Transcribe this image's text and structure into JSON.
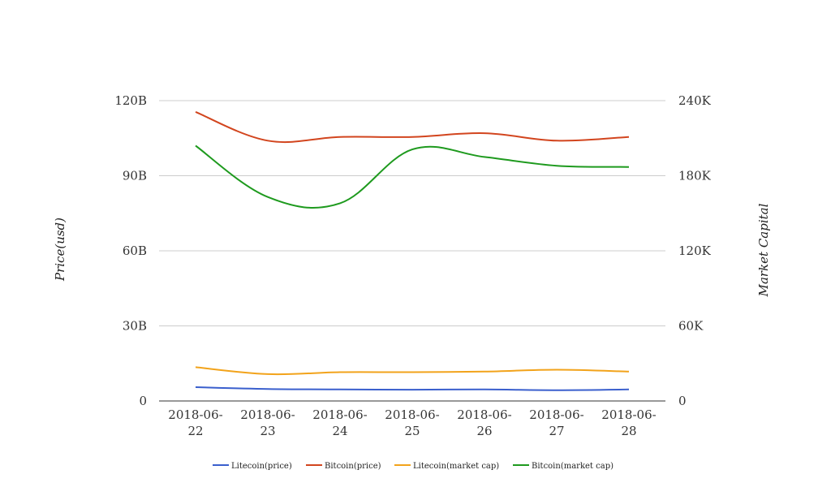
{
  "chart_data": {
    "type": "line",
    "x": [
      "2018-06-22",
      "2018-06-23",
      "2018-06-24",
      "2018-06-25",
      "2018-06-26",
      "2018-06-27",
      "2018-06-28"
    ],
    "x_tick_lines": [
      [
        "2018-06-",
        "22"
      ],
      [
        "2018-06-",
        "23"
      ],
      [
        "2018-06-",
        "24"
      ],
      [
        "2018-06-",
        "25"
      ],
      [
        "2018-06-",
        "26"
      ],
      [
        "2018-06-",
        "27"
      ],
      [
        "2018-06-",
        "28"
      ]
    ],
    "ylabel_left": "Price(usd)",
    "ylabel_right": "Market Capital",
    "y_left": {
      "ticks": [
        0,
        30,
        60,
        90,
        120
      ],
      "tick_labels": [
        "0",
        "30B",
        "60B",
        "90B",
        "120B"
      ],
      "range": [
        0,
        120
      ],
      "unit": "B"
    },
    "y_right": {
      "ticks": [
        0,
        60,
        120,
        180,
        240
      ],
      "tick_labels": [
        "0",
        "60K",
        "120K",
        "180K",
        "240K"
      ],
      "range": [
        0,
        240
      ],
      "unit": "K"
    },
    "grid": true,
    "legend_position": "bottom",
    "series": [
      {
        "name": "Litecoin(price)",
        "axis": "left",
        "color": "#3a5fcd",
        "values": [
          5.5,
          4.8,
          4.6,
          4.5,
          4.6,
          4.3,
          4.6
        ]
      },
      {
        "name": "Bitcoin(price)",
        "axis": "left",
        "color": "#d2451e",
        "values": [
          115.5,
          104,
          105.5,
          105.5,
          107,
          104,
          105.5
        ]
      },
      {
        "name": "Litecoin(market cap)",
        "axis": "right",
        "color": "#f2a31b",
        "values": [
          27,
          21.5,
          23,
          23,
          23.5,
          25,
          23.5
        ]
      },
      {
        "name": "Bitcoin(market cap)",
        "axis": "right",
        "color": "#1e9a1e",
        "values": [
          204,
          163,
          158,
          201,
          195,
          188,
          187
        ]
      }
    ]
  }
}
